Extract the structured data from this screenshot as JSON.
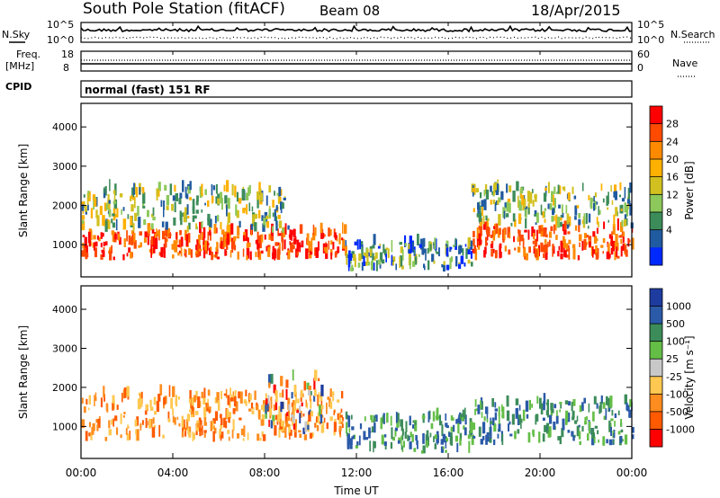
{
  "header": {
    "station": "South Pole Station (fitACF)",
    "beam": "Beam 08",
    "date": "18/Apr/2015"
  },
  "top_panels": {
    "nsky_label": "N.Sky",
    "nsearch_label": "N.Search",
    "nsky_ticks": [
      "10^5",
      "10^0"
    ],
    "nsearch_ticks": [
      "10^5",
      "10^0"
    ],
    "freq_label_line1": "Freq.",
    "freq_label_line2": "[MHz]",
    "freq_ticks": [
      "18",
      "8"
    ],
    "nave_label": "Nave",
    "nave_ticks": [
      "60",
      "0"
    ],
    "cpid_label": "CPID",
    "cpid_value": "normal (fast) 151 RF"
  },
  "chart_data": [
    {
      "type": "heatmap",
      "title": "",
      "xlabel": "Time UT",
      "ylabel": "Slant Range [km]",
      "x_ticks": [
        "00:00",
        "04:00",
        "08:00",
        "12:00",
        "16:00",
        "20:00",
        "00:00"
      ],
      "x_range_hours": [
        0,
        24
      ],
      "y_ticks": [
        1000,
        2000,
        3000,
        4000
      ],
      "ylim": [
        180,
        4600
      ],
      "colorbar": {
        "label": "Power [dB]",
        "ticks": [
          "28",
          "24",
          "20",
          "16",
          "12",
          "8",
          "4"
        ],
        "colors": [
          "#ff0000",
          "#ff4a00",
          "#ff8a00",
          "#ffb000",
          "#d2c020",
          "#8cc85a",
          "#3c8c5a",
          "#205aa0",
          "#0028ff"
        ]
      },
      "echo_regions": [
        {
          "t_start": 0.0,
          "t_end": 11.5,
          "range_km": [
            600,
            1300
          ],
          "level": "high"
        },
        {
          "t_start": 0.0,
          "t_end": 9.0,
          "range_km": [
            1300,
            2400
          ],
          "level": "mid"
        },
        {
          "t_start": 11.5,
          "t_end": 17.0,
          "range_km": [
            300,
            1000
          ],
          "level": "low"
        },
        {
          "t_start": 17.0,
          "t_end": 24.0,
          "range_km": [
            600,
            1400
          ],
          "level": "high"
        },
        {
          "t_start": 17.0,
          "t_end": 24.0,
          "range_km": [
            1400,
            2400
          ],
          "level": "mid"
        }
      ]
    },
    {
      "type": "heatmap",
      "title": "",
      "xlabel": "Time UT",
      "ylabel": "Slant Range [km]",
      "x_ticks": [
        "00:00",
        "04:00",
        "08:00",
        "12:00",
        "16:00",
        "20:00",
        "00:00"
      ],
      "x_range_hours": [
        0,
        24
      ],
      "y_ticks": [
        1000,
        2000,
        3000,
        4000
      ],
      "ylim": [
        180,
        4600
      ],
      "colorbar": {
        "label": "Velocity [m s⁻¹]",
        "ticks": [
          "1000",
          "500",
          "100",
          "25",
          "-25",
          "-100",
          "-500",
          "-1000"
        ],
        "colors": [
          "#1e3ca0",
          "#2a5aa8",
          "#3c8c5a",
          "#64be46",
          "#c8c8c8",
          "#ffc850",
          "#ff8c1e",
          "#ff5a00",
          "#ff0000"
        ]
      },
      "echo_regions": [
        {
          "t_start": 0.0,
          "t_end": 11.5,
          "range_km": [
            600,
            1800
          ],
          "level": "negative"
        },
        {
          "t_start": 8.0,
          "t_end": 10.5,
          "range_km": [
            800,
            2200
          ],
          "level": "mixed"
        },
        {
          "t_start": 11.5,
          "t_end": 17.0,
          "range_km": [
            300,
            1200
          ],
          "level": "positive"
        },
        {
          "t_start": 17.0,
          "t_end": 24.0,
          "range_km": [
            500,
            1600
          ],
          "level": "positive"
        }
      ]
    }
  ]
}
